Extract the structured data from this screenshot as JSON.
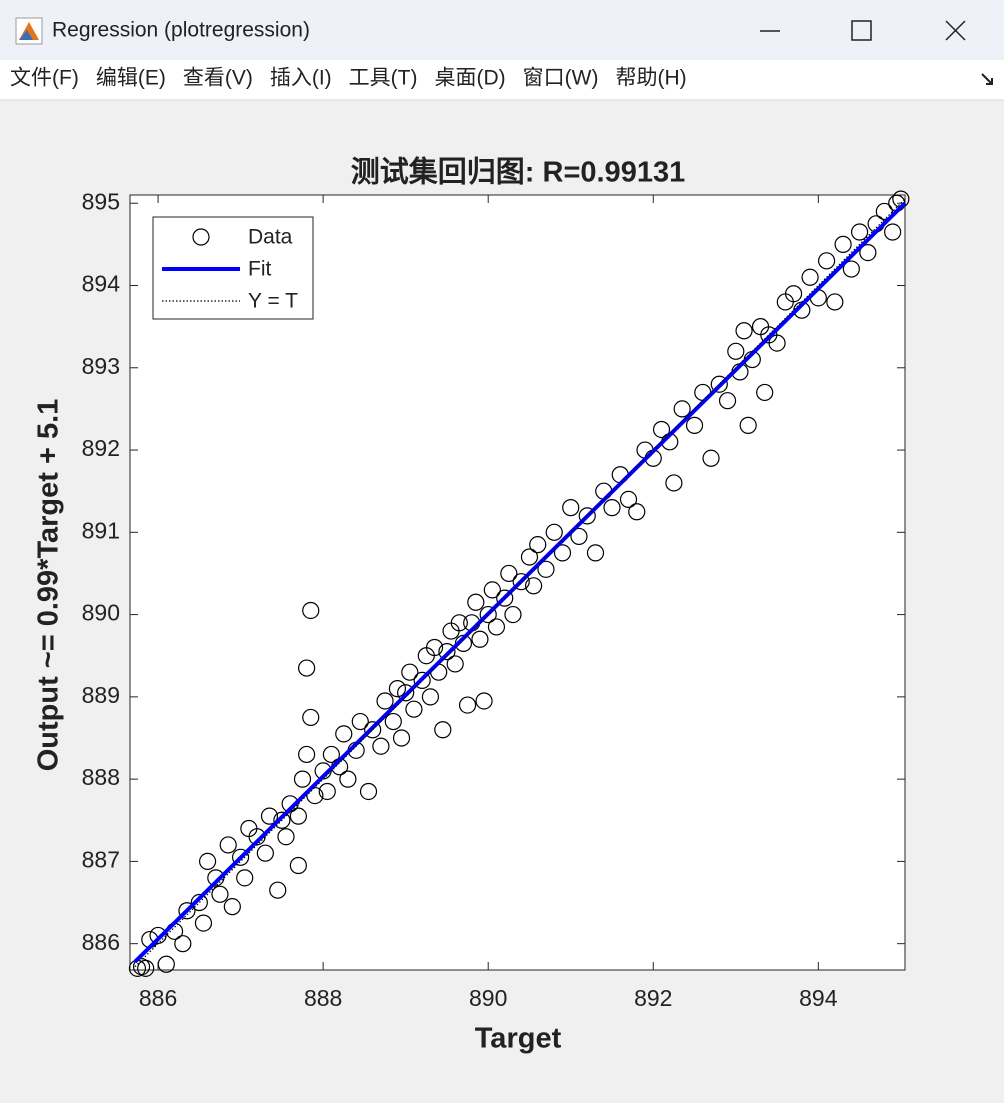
{
  "window": {
    "title": "Regression (plotregression)",
    "menu": [
      "文件(F)",
      "编辑(E)",
      "查看(V)",
      "插入(I)",
      "工具(T)",
      "桌面(D)",
      "窗口(W)",
      "帮助(H)"
    ]
  },
  "chart_data": {
    "type": "scatter",
    "title": "测试集回归图: R=0.99131",
    "xlabel": "Target",
    "ylabel": "Output ~= 0.99*Target + 5.1",
    "xlim": [
      885.66,
      895.05
    ],
    "ylim": [
      885.68,
      895.1
    ],
    "xticks": [
      886,
      888,
      890,
      892,
      894
    ],
    "yticks": [
      886,
      887,
      888,
      889,
      890,
      891,
      892,
      893,
      894,
      895
    ],
    "grid": false,
    "legend": "upper left",
    "series": [
      {
        "name": "Data",
        "color": "#000000",
        "marker": "circle",
        "x": [
          885.75,
          885.8,
          885.85,
          885.9,
          886.0,
          886.1,
          886.2,
          886.3,
          886.35,
          886.5,
          886.55,
          886.6,
          886.7,
          886.75,
          886.85,
          886.9,
          887.0,
          887.05,
          887.1,
          887.2,
          887.3,
          887.35,
          887.45,
          887.5,
          887.55,
          887.6,
          887.7,
          887.75,
          887.8,
          887.85,
          887.8,
          887.85,
          887.7,
          887.9,
          888.0,
          888.05,
          888.1,
          888.2,
          888.25,
          888.3,
          888.4,
          888.45,
          888.55,
          888.6,
          888.7,
          888.75,
          888.85,
          888.9,
          888.95,
          889.0,
          889.05,
          889.1,
          889.2,
          889.25,
          889.3,
          889.35,
          889.4,
          889.45,
          889.5,
          889.55,
          889.6,
          889.65,
          889.7,
          889.75,
          889.8,
          889.85,
          889.9,
          889.95,
          890.0,
          890.05,
          890.1,
          890.2,
          890.25,
          890.3,
          890.4,
          890.5,
          890.55,
          890.6,
          890.7,
          890.8,
          890.9,
          891.0,
          891.1,
          891.2,
          891.3,
          891.4,
          891.5,
          891.6,
          891.7,
          891.8,
          891.9,
          892.0,
          892.1,
          892.2,
          892.25,
          892.35,
          892.5,
          892.6,
          892.7,
          892.8,
          892.9,
          893.0,
          893.05,
          893.1,
          893.15,
          893.2,
          893.3,
          893.35,
          893.4,
          893.5,
          893.6,
          893.7,
          893.8,
          893.9,
          894.0,
          894.1,
          894.2,
          894.3,
          894.4,
          894.5,
          894.6,
          894.7,
          894.8,
          894.9,
          894.95,
          895.0
        ],
        "values": [
          885.7,
          885.72,
          885.7,
          886.05,
          886.1,
          885.75,
          886.15,
          886.0,
          886.4,
          886.5,
          886.25,
          887.0,
          886.8,
          886.6,
          887.2,
          886.45,
          887.05,
          886.8,
          887.4,
          887.3,
          887.1,
          887.55,
          886.65,
          887.5,
          887.3,
          887.7,
          887.55,
          888.0,
          888.3,
          888.75,
          889.35,
          890.05,
          886.95,
          887.8,
          888.1,
          887.85,
          888.3,
          888.15,
          888.55,
          888.0,
          888.35,
          888.7,
          887.85,
          888.6,
          888.4,
          888.95,
          888.7,
          889.1,
          888.5,
          889.05,
          889.3,
          888.85,
          889.2,
          889.5,
          889.0,
          889.6,
          889.3,
          888.6,
          889.55,
          889.8,
          889.4,
          889.9,
          889.65,
          888.9,
          889.9,
          890.15,
          889.7,
          888.95,
          890.0,
          890.3,
          889.85,
          890.2,
          890.5,
          890.0,
          890.4,
          890.7,
          890.35,
          890.85,
          890.55,
          891.0,
          890.75,
          891.3,
          890.95,
          891.2,
          890.75,
          891.5,
          891.3,
          891.7,
          891.4,
          891.25,
          892.0,
          891.9,
          892.25,
          892.1,
          891.6,
          892.5,
          892.3,
          892.7,
          891.9,
          892.8,
          892.6,
          893.2,
          892.95,
          893.45,
          892.3,
          893.1,
          893.5,
          892.7,
          893.4,
          893.3,
          893.8,
          893.9,
          893.7,
          894.1,
          893.85,
          894.3,
          893.8,
          894.5,
          894.2,
          894.65,
          894.4,
          894.75,
          894.9,
          894.65,
          895.0,
          895.05
        ]
      },
      {
        "name": "Fit",
        "color": "#0000ff",
        "line": "solid",
        "x": [
          885.72,
          895.05
        ],
        "values": [
          885.78,
          895.0
        ]
      },
      {
        "name": "Y = T",
        "color": "#000000",
        "line": "dotted",
        "x": [
          885.72,
          895.05
        ],
        "values": [
          885.72,
          895.05
        ]
      }
    ]
  }
}
